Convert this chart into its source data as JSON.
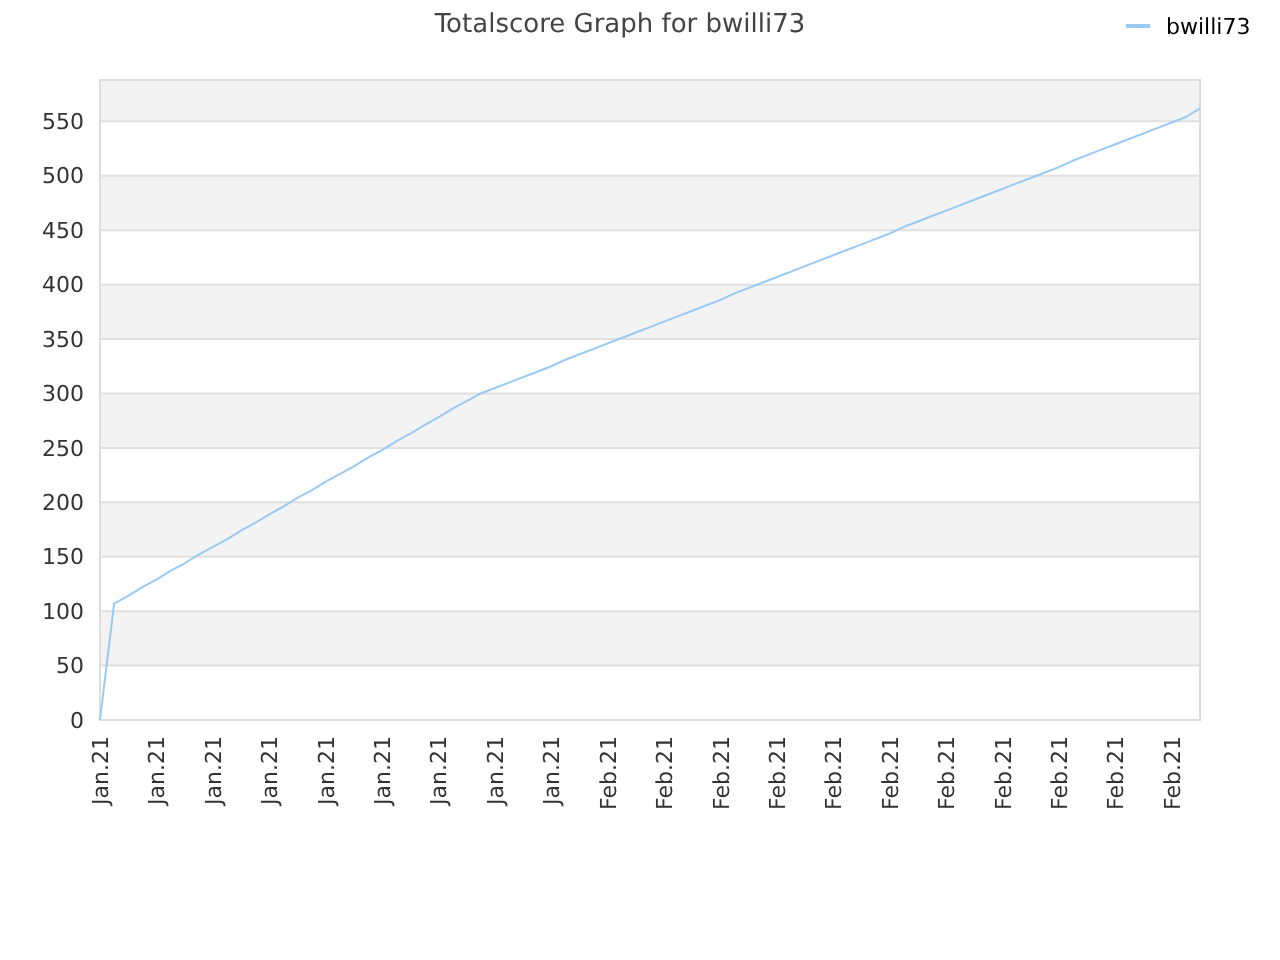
{
  "chart_data": {
    "type": "line",
    "title": "Totalscore Graph for bwilli73",
    "categories": [
      "Jan.21",
      null,
      null,
      null,
      "Jan.21",
      null,
      null,
      null,
      "Jan.21",
      null,
      null,
      null,
      "Jan.21",
      null,
      null,
      null,
      "Jan.21",
      null,
      null,
      null,
      "Jan.21",
      null,
      null,
      null,
      "Jan.21",
      null,
      null,
      null,
      "Jan.21",
      null,
      null,
      null,
      "Jan.21",
      null,
      null,
      null,
      "Feb.21",
      null,
      null,
      null,
      "Feb.21",
      null,
      null,
      null,
      "Feb.21",
      null,
      null,
      null,
      "Feb.21",
      null,
      null,
      null,
      "Feb.21",
      null,
      null,
      null,
      "Feb.21",
      null,
      null,
      null,
      "Feb.21",
      null,
      null,
      null,
      "Feb.21",
      null,
      null,
      null,
      "Feb.21",
      null,
      null,
      null,
      "Feb.21",
      null,
      null,
      null,
      "Feb.21",
      null,
      null
    ],
    "series": [
      {
        "name": "bwilli73",
        "color": "#99c9f5",
        "values": [
          0,
          107,
          114,
          122,
          129,
          137,
          144,
          152,
          159,
          166,
          174,
          181,
          189,
          196,
          204,
          211,
          219,
          226,
          233,
          241,
          248,
          256,
          263,
          271,
          278,
          286,
          293,
          300,
          305,
          310,
          315,
          320,
          325,
          331,
          336,
          341,
          346,
          351,
          356,
          361,
          366,
          371,
          376,
          381,
          386,
          392,
          397,
          402,
          407,
          412,
          417,
          422,
          427,
          432,
          437,
          442,
          447,
          453,
          458,
          463,
          468,
          473,
          478,
          483,
          488,
          493,
          498,
          503,
          508,
          514,
          519,
          524,
          529,
          534,
          539,
          544,
          549,
          554,
          562
        ]
      }
    ],
    "ylim": [
      0,
      588
    ],
    "yticks": [
      0,
      50,
      100,
      150,
      200,
      250,
      300,
      350,
      400,
      450,
      500,
      550
    ],
    "grid": "y",
    "legend": "top right",
    "marker": "none",
    "line_style": "solid"
  }
}
